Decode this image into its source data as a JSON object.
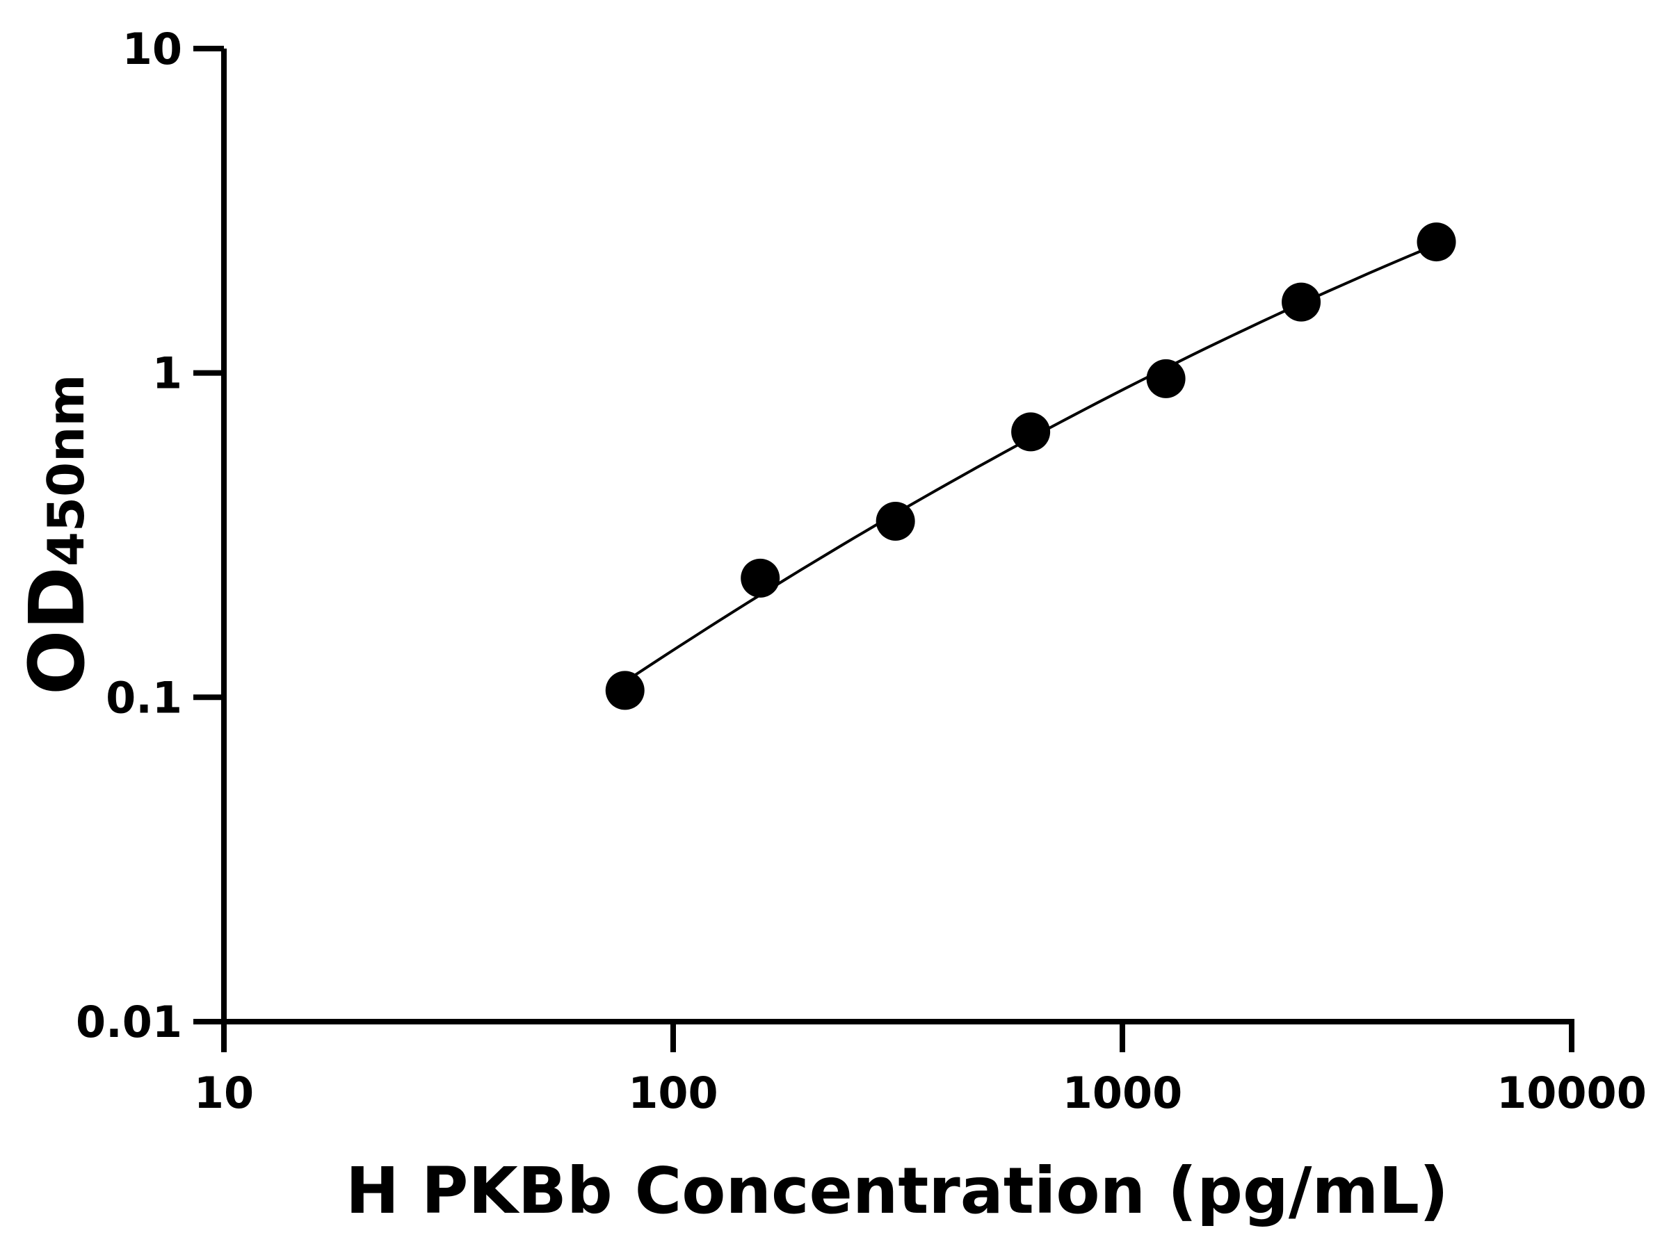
{
  "chart_data": {
    "type": "scatter",
    "xlabel": "H PKBb Concentration (pg/mL)",
    "ylabel_main": "OD",
    "ylabel_sub": "450nm",
    "xscale": "log",
    "yscale": "log",
    "xlim": [
      10,
      10000
    ],
    "ylim": [
      0.01,
      10
    ],
    "xticks": [
      "10",
      "100",
      "1000",
      "10000"
    ],
    "yticks": [
      "0.01",
      "0.1",
      "1",
      "10"
    ],
    "grid": false,
    "legend": "none",
    "series": [
      {
        "x": [
          78.125,
          156.25,
          312.5,
          625,
          1250,
          2500,
          5000
        ],
        "y": [
          0.105,
          0.233,
          0.349,
          0.658,
          0.96,
          1.654,
          2.535
        ],
        "marker": "filled-circle",
        "fit_line": true
      }
    ],
    "colors": {
      "marker": "#000000",
      "line": "#000000",
      "axis": "#000000"
    }
  }
}
